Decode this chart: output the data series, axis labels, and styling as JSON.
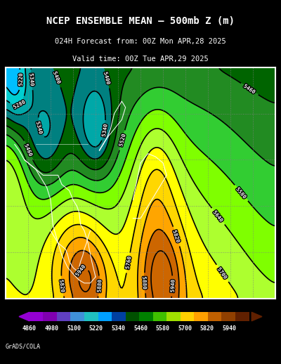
{
  "title_line1": "NCEP ENSEMBLE MEAN – 500mb Z (m)",
  "title_line2": "024H Forecast from: 00Z Mon APR,28 2025",
  "title_line3": "Valid time: 00Z Tue APR,29 2025",
  "colorbar_levels": [
    4860,
    4980,
    5100,
    5220,
    5340,
    5460,
    5580,
    5700,
    5820,
    5940
  ],
  "colorbar_colors": [
    "#9B00FF",
    "#7B2FBE",
    "#5B6FD6",
    "#4BA8E8",
    "#00CFCF",
    "#1E90FF",
    "#003DA0",
    "#006400",
    "#00A800",
    "#7FD000",
    "#C8E800",
    "#FFFF00",
    "#FFD000",
    "#FFA500",
    "#C86400",
    "#A03200"
  ],
  "background_color": "#000000",
  "map_bg": "#C8860A",
  "map_border": "#FFFFFF",
  "credit": "GrADS/COLA"
}
